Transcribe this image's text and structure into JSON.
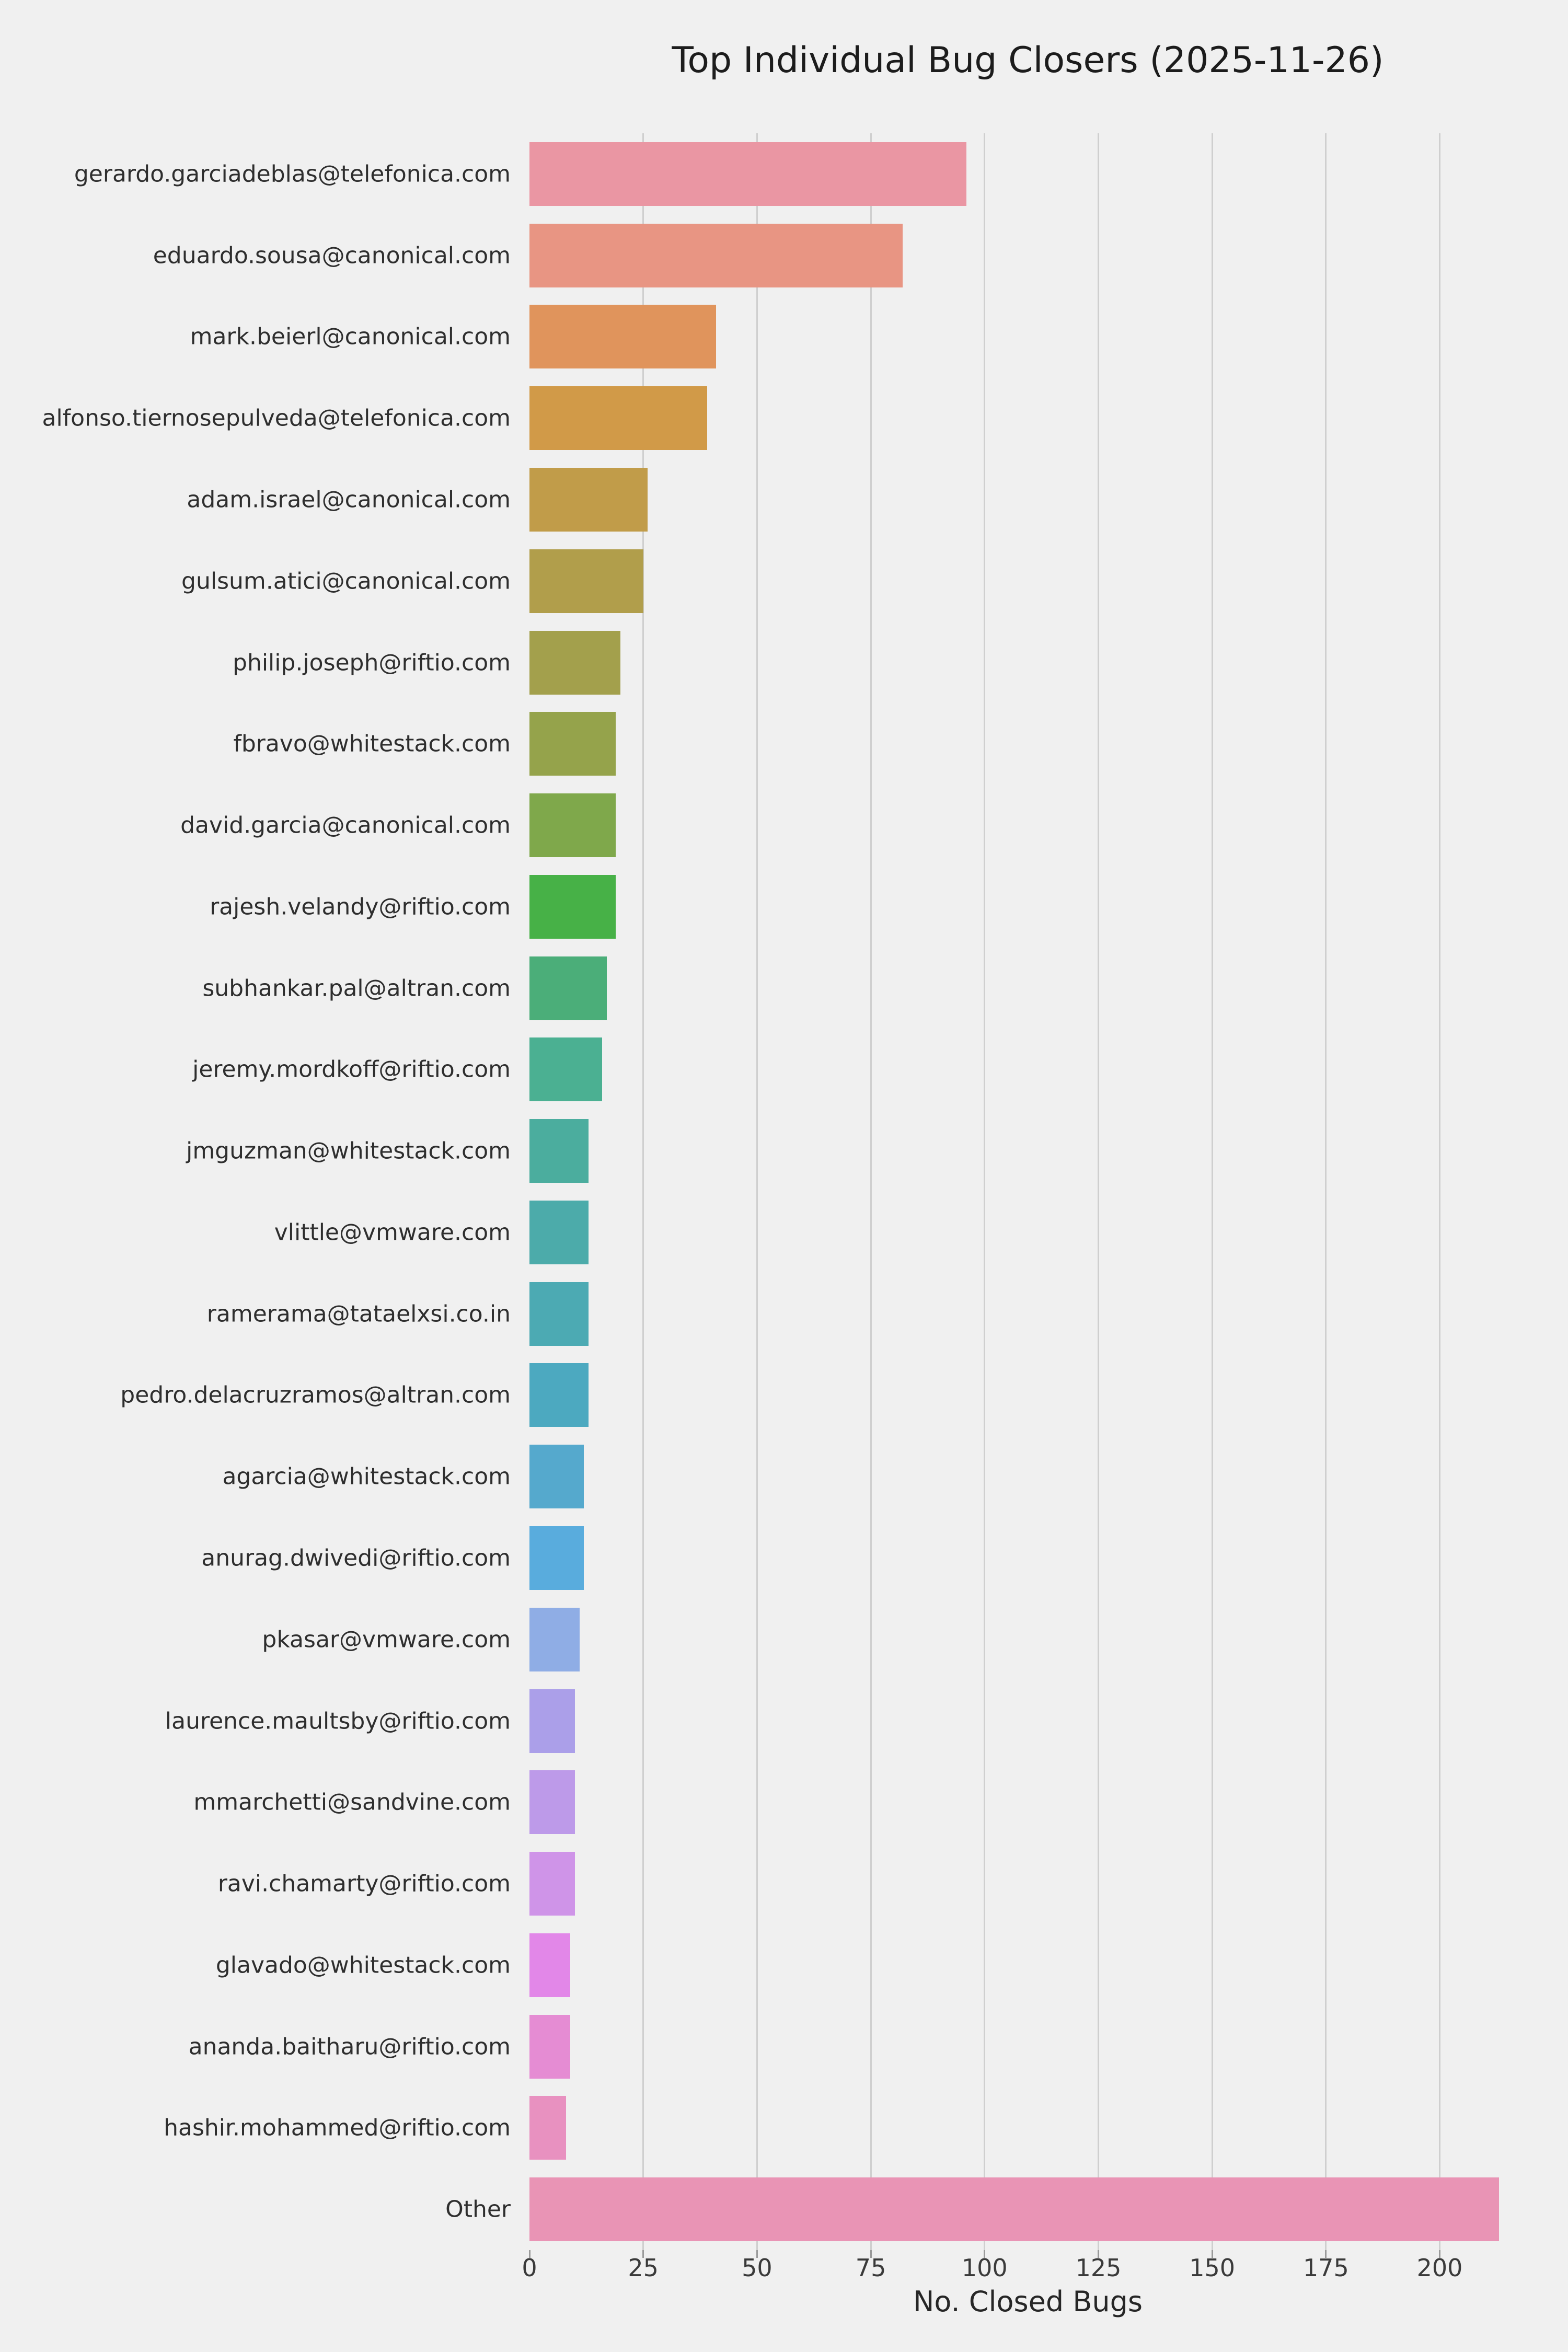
{
  "chart_data": {
    "type": "bar",
    "orientation": "horizontal",
    "title": "Top Individual Bug Closers (2025-11-26)",
    "xlabel": "No. Closed Bugs",
    "ylabel": "",
    "grid": "vertical",
    "legend": "none",
    "xlim": [
      0,
      219
    ],
    "x_ticks": [
      0,
      25,
      50,
      75,
      100,
      125,
      150,
      175,
      200
    ],
    "categories": [
      "gerardo.garciadeblas@telefonica.com",
      "eduardo.sousa@canonical.com",
      "mark.beierl@canonical.com",
      "alfonso.tiernosepulveda@telefonica.com",
      "adam.israel@canonical.com",
      "gulsum.atici@canonical.com",
      "philip.joseph@riftio.com",
      "fbravo@whitestack.com",
      "david.garcia@canonical.com",
      "rajesh.velandy@riftio.com",
      "subhankar.pal@altran.com",
      "jeremy.mordkoff@riftio.com",
      "jmguzman@whitestack.com",
      "vlittle@vmware.com",
      "ramerama@tataelxsi.co.in",
      "pedro.delacruzramos@altran.com",
      "agarcia@whitestack.com",
      "anurag.dwivedi@riftio.com",
      "pkasar@vmware.com",
      "laurence.maultsby@riftio.com",
      "mmarchetti@sandvine.com",
      "ravi.chamarty@riftio.com",
      "glavado@whitestack.com",
      "ananda.baitharu@riftio.com",
      "hashir.mohammed@riftio.com",
      "Other"
    ],
    "values": [
      96,
      82,
      41,
      39,
      26,
      25,
      20,
      19,
      19,
      19,
      17,
      16,
      13,
      13,
      13,
      13,
      12,
      12,
      11,
      10,
      10,
      10,
      9,
      9,
      8,
      213
    ],
    "bar_colors": [
      "#ea96a3",
      "#e89583",
      "#e0945c",
      "#d19a48",
      "#c19c49",
      "#b19e4b",
      "#a3a04c",
      "#95a34b",
      "#7fa84b",
      "#47b147",
      "#4bae79",
      "#4bb092",
      "#4bad9e",
      "#4cabaa",
      "#4caab3",
      "#4ca9c0",
      "#55a9cd",
      "#59acdd",
      "#8fade5",
      "#ab9fe9",
      "#bd9ae9",
      "#cf94e8",
      "#e287e8",
      "#e58cd3",
      "#e891c0",
      "#e994b5"
    ],
    "colors": {
      "background": "#f0f0f0",
      "gridline": "#cfcfcf",
      "tick_mark": "#9a9a9a",
      "title_text": "#1c1c1c",
      "label_text": "#2e2e2e"
    }
  }
}
